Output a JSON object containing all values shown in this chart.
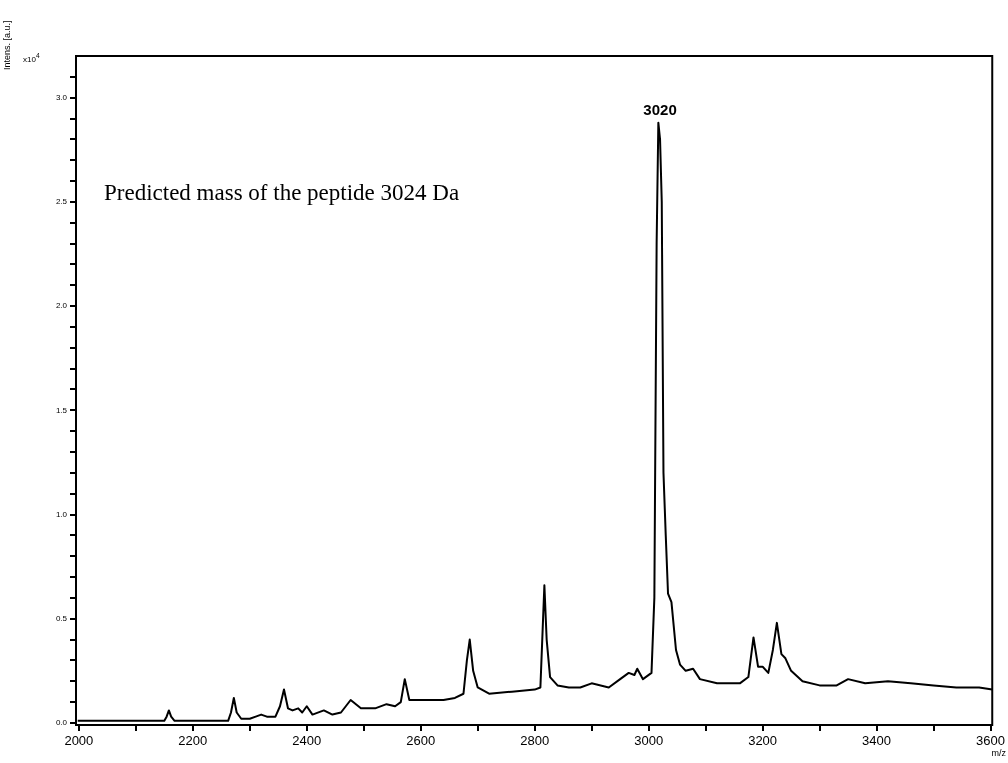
{
  "chart_data": {
    "type": "line",
    "xlabel": "m/z",
    "ylabel": "Intens. [a.u.]",
    "x": [
      1998,
      2150,
      2154,
      2158,
      2162,
      2168,
      2262,
      2267,
      2272,
      2277,
      2285,
      2300,
      2320,
      2330,
      2345,
      2353,
      2360,
      2367,
      2375,
      2385,
      2392,
      2400,
      2410,
      2430,
      2445,
      2460,
      2477,
      2495,
      2520,
      2540,
      2555,
      2565,
      2572,
      2580,
      2600,
      2640,
      2660,
      2675,
      2681,
      2686,
      2692,
      2700,
      2720,
      2760,
      2800,
      2810,
      2814,
      2817,
      2821,
      2827,
      2840,
      2860,
      2880,
      2900,
      2930,
      2950,
      2965,
      2975,
      2980,
      2990,
      3005,
      3010,
      3014,
      3017,
      3020,
      3023,
      3026,
      3030,
      3034,
      3040,
      3048,
      3055,
      3065,
      3078,
      3090,
      3120,
      3160,
      3175,
      3184,
      3192,
      3200,
      3210,
      3218,
      3225,
      3233,
      3240,
      3250,
      3270,
      3300,
      3330,
      3350,
      3380,
      3420,
      3460,
      3500,
      3540,
      3580,
      3603
    ],
    "series": [
      {
        "color": "#000000",
        "values": [
          0.01,
          0.01,
          0.03,
          0.06,
          0.03,
          0.01,
          0.01,
          0.05,
          0.12,
          0.05,
          0.02,
          0.02,
          0.04,
          0.03,
          0.03,
          0.08,
          0.16,
          0.07,
          0.06,
          0.07,
          0.05,
          0.08,
          0.04,
          0.06,
          0.04,
          0.05,
          0.11,
          0.07,
          0.07,
          0.09,
          0.08,
          0.1,
          0.21,
          0.11,
          0.11,
          0.11,
          0.12,
          0.14,
          0.3,
          0.4,
          0.25,
          0.17,
          0.14,
          0.15,
          0.16,
          0.17,
          0.45,
          0.66,
          0.4,
          0.22,
          0.18,
          0.17,
          0.17,
          0.19,
          0.17,
          0.21,
          0.24,
          0.23,
          0.26,
          0.21,
          0.24,
          0.6,
          2.3,
          2.88,
          2.8,
          2.5,
          1.2,
          0.9,
          0.62,
          0.58,
          0.35,
          0.28,
          0.25,
          0.26,
          0.21,
          0.19,
          0.19,
          0.22,
          0.41,
          0.27,
          0.27,
          0.24,
          0.35,
          0.48,
          0.33,
          0.31,
          0.25,
          0.2,
          0.18,
          0.18,
          0.21,
          0.19,
          0.2,
          0.19,
          0.18,
          0.17,
          0.17,
          0.16
        ]
      }
    ],
    "xlim": [
      1995,
      3603
    ],
    "xticks": [
      2000,
      {
        "value": 2100,
        "label": null
      },
      2200,
      {
        "value": 2300,
        "label": null
      },
      2400,
      {
        "value": 2500,
        "label": null
      },
      2600,
      {
        "value": 2700,
        "label": null
      },
      2800,
      {
        "value": 2900,
        "label": null
      },
      3000,
      {
        "value": 3100,
        "label": null
      },
      3200,
      {
        "value": 3300,
        "label": null
      },
      3400,
      {
        "value": 3500,
        "label": null
      },
      3600
    ],
    "ylim": [
      -0.01,
      3.2
    ],
    "yticks": [
      {
        "value": 0,
        "label": "0.0"
      },
      {
        "value": 0.1,
        "label": null
      },
      {
        "value": 0.2,
        "label": null
      },
      {
        "value": 0.3,
        "label": null
      },
      {
        "value": 0.4,
        "label": null
      },
      {
        "value": 0.5,
        "label": "0.5"
      },
      {
        "value": 0.6,
        "label": null
      },
      {
        "value": 0.7,
        "label": null
      },
      {
        "value": 0.8,
        "label": null
      },
      {
        "value": 0.9,
        "label": null
      },
      {
        "value": 1.0,
        "label": "1.0"
      },
      {
        "value": 1.1,
        "label": null
      },
      {
        "value": 1.2,
        "label": null
      },
      {
        "value": 1.3,
        "label": null
      },
      {
        "value": 1.4,
        "label": null
      },
      {
        "value": 1.5,
        "label": "1.5"
      },
      {
        "value": 1.6,
        "label": null
      },
      {
        "value": 1.7,
        "label": null
      },
      {
        "value": 1.8,
        "label": null
      },
      {
        "value": 1.9,
        "label": null
      },
      {
        "value": 2.0,
        "label": "2.0"
      },
      {
        "value": 2.1,
        "label": null
      },
      {
        "value": 2.2,
        "label": null
      },
      {
        "value": 2.3,
        "label": null
      },
      {
        "value": 2.4,
        "label": null
      },
      {
        "value": 2.5,
        "label": "2.5"
      },
      {
        "value": 2.6,
        "label": null
      },
      {
        "value": 2.7,
        "label": null
      },
      {
        "value": 2.8,
        "label": null
      },
      {
        "value": 2.9,
        "label": null
      },
      {
        "value": 3.0,
        "label": "3.0"
      },
      {
        "value": 3.1,
        "label": null
      }
    ],
    "annotations": [
      "x10$^{4}$",
      "Predicted mass of the peptide 3024 Da",
      {
        "text": "3020",
        "x": 3020,
        "y": 2.88
      }
    ],
    "grid": false,
    "legend": false,
    "marker": "none",
    "line_style": "solid"
  }
}
